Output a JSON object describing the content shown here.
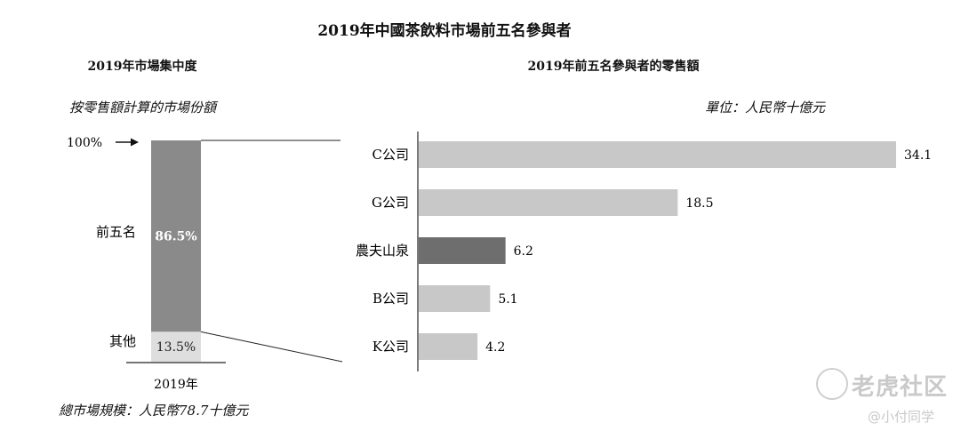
{
  "main_title": "2019年中國茶飲料市場前五名參與者",
  "left_chart": {
    "title": "2019年市場集中度",
    "subtitle": "按零售額計算的市場份額",
    "top_label": "100%",
    "total_label": "總市場規模：人民幣78.7十億元"
  },
  "right_chart": {
    "title": "2019年前五名參與者的零售額",
    "unit_label": "單位：人民幣十億元"
  },
  "watermark": {
    "brand": "老虎社区",
    "user": "@小付同学"
  },
  "colors": {
    "top5_bar": "#8a8a8a",
    "others_bar": "#dedede",
    "company_bar": "#c8c8c8",
    "highlight_bar": "#6e6e6e",
    "axis": "#222222"
  },
  "chart_data": [
    {
      "type": "bar",
      "stacked": true,
      "title": "2019年市場集中度",
      "categories": [
        "2019年"
      ],
      "series": [
        {
          "name": "前五名",
          "values": [
            86.5
          ],
          "label": "86.5%"
        },
        {
          "name": "其他",
          "values": [
            13.5
          ],
          "label": "13.5%"
        }
      ],
      "ylim": [
        0,
        100
      ]
    },
    {
      "type": "bar",
      "orientation": "horizontal",
      "title": "2019年前五名參與者的零售額",
      "categories": [
        "C公司",
        "G公司",
        "農夫山泉",
        "B公司",
        "K公司"
      ],
      "values": [
        34.1,
        18.5,
        6.2,
        5.1,
        4.2
      ],
      "value_labels": [
        "34.1",
        "18.5",
        "6.2",
        "5.1",
        "4.2"
      ],
      "highlight": "農夫山泉",
      "xlim": [
        0,
        34.1
      ]
    }
  ]
}
